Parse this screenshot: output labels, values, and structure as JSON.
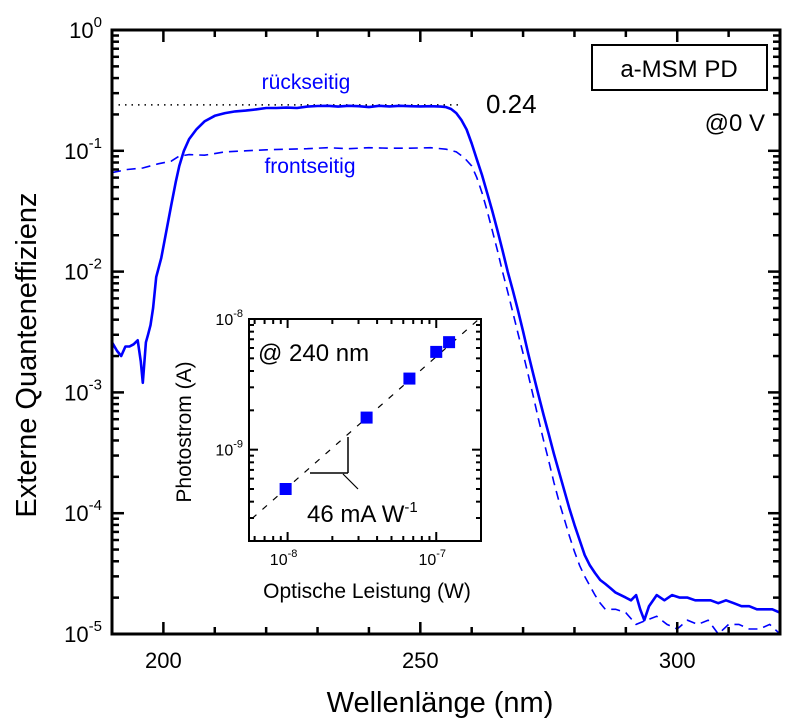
{
  "chart_data": [
    {
      "type": "line",
      "title": "",
      "xlabel": "Wellenlänge (nm)",
      "ylabel": "Externe Quanteneffizienz",
      "xlim": [
        190,
        320
      ],
      "ylim": [
        1e-05,
        1
      ],
      "yscale": "log",
      "grid": false,
      "xticks": [
        200,
        250,
        300
      ],
      "xtick_labels": [
        "200",
        "250",
        "300"
      ],
      "yticks": [
        1e-05,
        0.0001,
        0.001,
        0.01,
        0.1,
        1
      ],
      "ytick_labels": [
        {
          "base": "10",
          "exp": "-5"
        },
        {
          "base": "10",
          "exp": "-4"
        },
        {
          "base": "10",
          "exp": "-3"
        },
        {
          "base": "10",
          "exp": "-2"
        },
        {
          "base": "10",
          "exp": "-1"
        },
        {
          "base": "10",
          "exp": "0"
        }
      ],
      "series": [
        {
          "name": "rückseitig",
          "style": "solid",
          "color": "#0000ff",
          "x": [
            190.0,
            191.0,
            191.8,
            192.6,
            193.4,
            194.2,
            195.0,
            195.6,
            196.0,
            196.6,
            197.0,
            197.5,
            198.0,
            198.6,
            199.6,
            200.6,
            201.5,
            202.4,
            203.1,
            204.0,
            205.0,
            206.4,
            208.0,
            210.0,
            212.0,
            214.0,
            216.0,
            218.0,
            220.0,
            222.0,
            224.0,
            226.0,
            228.0,
            230.0,
            232.0,
            234.0,
            236.0,
            238.0,
            240.0,
            242.0,
            244.0,
            246.0,
            248.0,
            250.0,
            252.0,
            254.0,
            255.0,
            256.0,
            257.0,
            258.0,
            259.0,
            260.0,
            261.0,
            262.0,
            263.0,
            264.0,
            265.0,
            266.0,
            267.0,
            268.0,
            269.0,
            270.0,
            271.0,
            272.0,
            273.0,
            274.0,
            275.0,
            276.0,
            277.0,
            278.0,
            279.0,
            280.0,
            281.0,
            282.0,
            283.0,
            284.0,
            285.0,
            286.0,
            287.0,
            288.0,
            289.0,
            290.0,
            291.0,
            292.0,
            292.8,
            293.6,
            294.5,
            296.0,
            297.5,
            299.0,
            300.5,
            302.0,
            303.5,
            305.0,
            306.5,
            308.0,
            309.5,
            311.0,
            312.5,
            314.0,
            315.5,
            317.0,
            318.5,
            320.0
          ],
          "y": [
            0.0026,
            0.0022,
            0.002,
            0.0024,
            0.0024,
            0.0025,
            0.0027,
            0.0018,
            0.0012,
            0.0026,
            0.003,
            0.0036,
            0.005,
            0.009,
            0.013,
            0.022,
            0.035,
            0.055,
            0.075,
            0.1,
            0.125,
            0.15,
            0.175,
            0.195,
            0.205,
            0.212,
            0.215,
            0.22,
            0.226,
            0.226,
            0.228,
            0.226,
            0.232,
            0.235,
            0.236,
            0.232,
            0.236,
            0.234,
            0.23,
            0.236,
            0.233,
            0.236,
            0.234,
            0.233,
            0.234,
            0.232,
            0.23,
            0.222,
            0.205,
            0.18,
            0.15,
            0.115,
            0.085,
            0.063,
            0.045,
            0.032,
            0.022,
            0.015,
            0.01,
            0.007,
            0.0048,
            0.0032,
            0.0021,
            0.0014,
            0.00095,
            0.00065,
            0.00045,
            0.00031,
            0.00022,
            0.000155,
            0.00011,
            8e-05,
            6e-05,
            4.5e-05,
            3.7e-05,
            3.2e-05,
            2.8e-05,
            2.6e-05,
            2.4e-05,
            2.2e-05,
            2.1e-05,
            2e-05,
            1.9e-05,
            2.1e-05,
            1.6e-05,
            1.3e-05,
            1.7e-05,
            2.1e-05,
            1.9e-05,
            2.1e-05,
            2e-05,
            2e-05,
            1.9e-05,
            1.9e-05,
            1.9e-05,
            1.8e-05,
            1.9e-05,
            1.8e-05,
            1.7e-05,
            1.7e-05,
            1.6e-05,
            1.6e-05,
            1.6e-05,
            1.5e-05
          ]
        },
        {
          "name": "frontseitig",
          "style": "dashed",
          "color": "#0000ff",
          "x": [
            190.0,
            193.0,
            196.0,
            199.0,
            201.5,
            203.0,
            205.0,
            208.0,
            212.0,
            216.0,
            220.0,
            224.0,
            228.0,
            232.0,
            236.0,
            240.0,
            244.0,
            248.0,
            252.0,
            255.0,
            257.0,
            258.5,
            260.0,
            261.0,
            262.0,
            263.0,
            264.0,
            265.0,
            266.0,
            267.0,
            268.0,
            269.0,
            270.0,
            271.0,
            272.0,
            273.0,
            274.0,
            275.0,
            276.0,
            277.0,
            278.0,
            279.0,
            280.0,
            281.0,
            282.0,
            283.0,
            284.0,
            285.0,
            286.0,
            288.0,
            290.0,
            292.0,
            294.0,
            296.0,
            298.0,
            300.0,
            302.0,
            304.0,
            306.0,
            308.0,
            310.0,
            312.0,
            314.0,
            316.0,
            318.0,
            320.0
          ],
          "y": [
            0.066,
            0.07,
            0.072,
            0.078,
            0.082,
            0.09,
            0.093,
            0.092,
            0.098,
            0.1,
            0.102,
            0.103,
            0.104,
            0.106,
            0.104,
            0.106,
            0.105,
            0.105,
            0.106,
            0.103,
            0.098,
            0.088,
            0.075,
            0.06,
            0.045,
            0.032,
            0.022,
            0.015,
            0.01,
            0.0068,
            0.0046,
            0.0031,
            0.0021,
            0.0014,
            0.00092,
            0.0006,
            0.0004,
            0.00027,
            0.00018,
            0.000125,
            9e-05,
            6.5e-05,
            4.8e-05,
            3.7e-05,
            3e-05,
            2.5e-05,
            2.1e-05,
            1.8e-05,
            1.6e-05,
            1.6e-05,
            1.5e-05,
            1.2e-05,
            1.3e-05,
            1.4e-05,
            1.2e-05,
            1.1e-05,
            1.3e-05,
            1.2e-05,
            1.3e-05,
            1e-05,
            1.2e-05,
            1.2e-05,
            1.1e-05,
            1.1e-05,
            1.2e-05,
            1e-05
          ]
        }
      ],
      "reference_line": {
        "value": 0.24,
        "style": "dotted",
        "color": "#000000",
        "x_range": [
          190,
          257.5
        ],
        "label": "0.24"
      },
      "annotations": [
        {
          "text": "rückseitig",
          "color": "#0000ff",
          "x": 229,
          "y": 0.38
        },
        {
          "text": "frontseitig",
          "color": "#0000ff",
          "x": 229,
          "y": 0.075
        },
        {
          "text": "0.24",
          "color": "#000000",
          "x": 275,
          "y": 0.24
        },
        {
          "text": "@0 V",
          "color": "#000000",
          "x": 312,
          "y": 0.16
        }
      ],
      "legend_box": {
        "text": "a-MSM PD",
        "placement": "top-right"
      }
    },
    {
      "type": "scatter",
      "title": "",
      "xlabel": "Optische Leistung (W)",
      "ylabel": "Photostrom (A)",
      "xscale": "log",
      "yscale": "log",
      "xlim": [
        5.5e-09,
        2e-07
      ],
      "ylim": [
        2e-10,
        1e-08
      ],
      "grid": false,
      "xticks": [
        1e-08,
        1e-07
      ],
      "xtick_labels": [
        {
          "base": "10",
          "exp": "-8"
        },
        {
          "base": "10",
          "exp": "-7"
        }
      ],
      "yticks": [
        1e-09,
        1e-08
      ],
      "ytick_labels": [
        {
          "base": "10",
          "exp": "-9"
        },
        {
          "base": "10",
          "exp": "-8"
        }
      ],
      "series": [
        {
          "name": "Photostrom",
          "marker": "square",
          "color": "#0000ff",
          "x": [
            9.7e-09,
            3.4e-08,
            6.6e-08,
            1e-07,
            1.22e-07
          ],
          "y": [
            5e-10,
            1.76e-09,
            3.5e-09,
            5.6e-09,
            6.65e-09
          ]
        }
      ],
      "fit_line": {
        "style": "dashed",
        "color": "#000000",
        "slope_label": "46 mA W",
        "slope_label_exp": "-1",
        "responsivity_A_per_W": 0.046
      },
      "annotations": [
        {
          "text": "@ 240 nm",
          "placement": "top-left"
        }
      ],
      "placement_in_parent": "center-left"
    }
  ]
}
